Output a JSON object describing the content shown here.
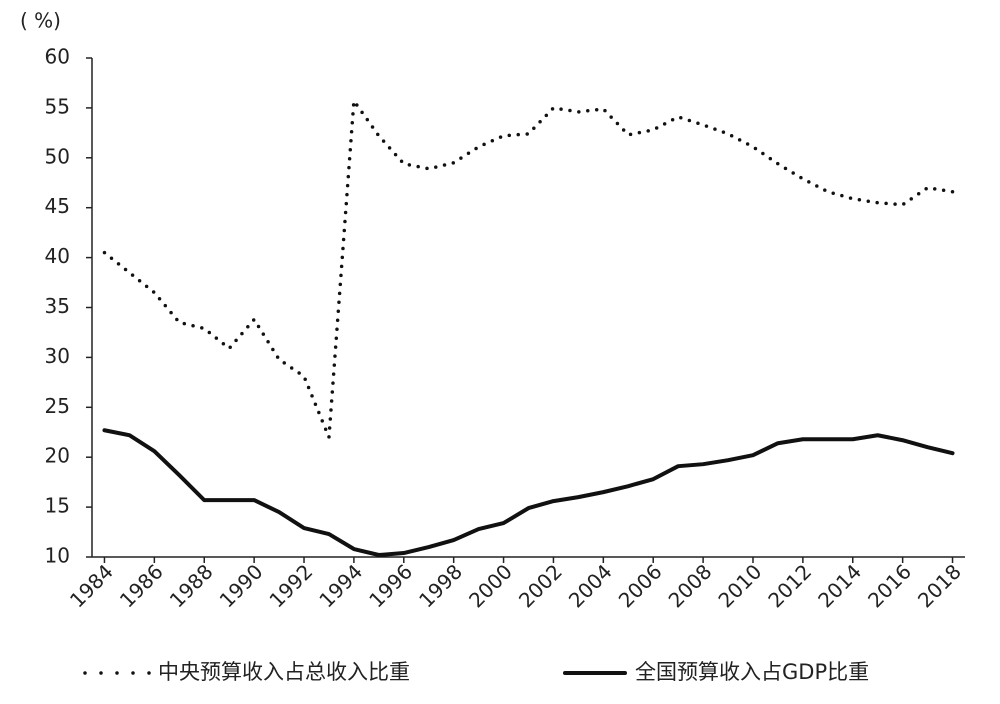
{
  "chart_data": {
    "type": "line",
    "y_label": "( %)",
    "categories": [
      "1984",
      null,
      "1986",
      null,
      "1988",
      null,
      "1990",
      null,
      "1992",
      null,
      "1994",
      null,
      "1996",
      null,
      "1998",
      null,
      "2000",
      null,
      "2002",
      null,
      "2004",
      null,
      "2006",
      null,
      "2008",
      null,
      "2010",
      null,
      "2012",
      null,
      "2014",
      null,
      "2016",
      null,
      "2018"
    ],
    "series": [
      {
        "name": "中央预算收入占总收入比重",
        "color": "#111111",
        "style": "dotted",
        "values": [
          40.5,
          38.5,
          36.5,
          33.5,
          32.9,
          30.9,
          33.8,
          29.8,
          28.1,
          22.0,
          55.7,
          52.2,
          49.4,
          48.9,
          49.5,
          51.1,
          52.2,
          52.4,
          55.0,
          54.6,
          54.9,
          52.3,
          52.8,
          54.1,
          53.3,
          52.4,
          51.1,
          49.4,
          47.9,
          46.6,
          45.9,
          45.5,
          45.3,
          47.0,
          46.6
        ]
      },
      {
        "name": "全国预算收入占GDP比重",
        "color": "#111111",
        "style": "solid",
        "values": [
          22.7,
          22.2,
          20.6,
          18.2,
          15.7,
          15.7,
          15.7,
          14.5,
          12.9,
          12.3,
          10.8,
          10.2,
          10.4,
          11.0,
          11.7,
          12.8,
          13.4,
          14.9,
          15.6,
          16.0,
          16.5,
          17.1,
          17.8,
          19.1,
          19.3,
          19.7,
          20.2,
          21.4,
          21.8,
          21.8,
          21.8,
          22.2,
          21.7,
          21.0,
          20.4
        ]
      }
    ],
    "ylim": [
      10,
      60
    ],
    "yticks": [
      10,
      15,
      20,
      25,
      30,
      35,
      40,
      45,
      50,
      55,
      60
    ],
    "grid": false,
    "legend": "bottom"
  }
}
